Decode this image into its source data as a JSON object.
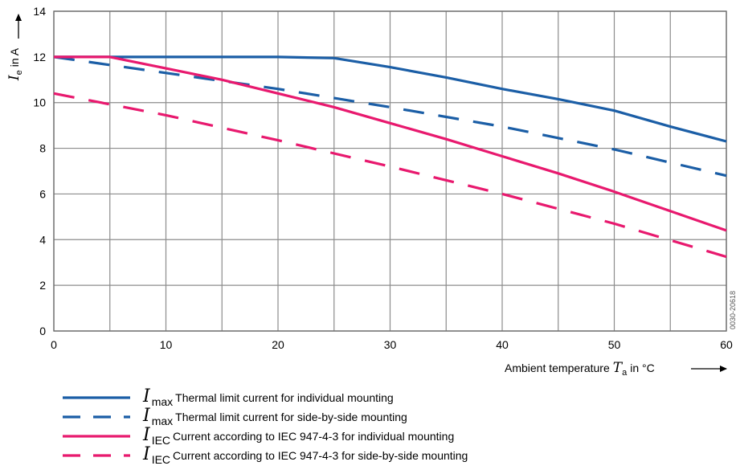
{
  "chart_data": {
    "type": "line",
    "title": "",
    "xlabel": "Ambient temperature",
    "xlabel_symbol": "T",
    "xlabel_subscript": "a",
    "xlabel_unit": "in °C",
    "ylabel_symbol": "I",
    "ylabel_subscript": "e",
    "ylabel_unit": "in A",
    "xlim": [
      0,
      60
    ],
    "ylim": [
      0,
      14
    ],
    "x_ticks": [
      0,
      10,
      20,
      30,
      40,
      50,
      60
    ],
    "y_ticks": [
      0,
      2,
      4,
      6,
      8,
      10,
      12,
      14
    ],
    "x_gridlines": [
      0,
      5,
      10,
      15,
      20,
      25,
      30,
      35,
      40,
      45,
      50,
      55,
      60
    ],
    "y_gridlines": [
      0,
      2,
      4,
      6,
      8,
      10,
      12,
      14
    ],
    "grid": true,
    "legend_position": "bottom",
    "side_note": "0030-20618",
    "series": [
      {
        "symbol": "I",
        "subscript": "max",
        "label": "Thermal limit current for individual mounting",
        "color": "#1b5ea6",
        "dash": "solid",
        "x": [
          0,
          5,
          10,
          15,
          20,
          25,
          30,
          35,
          40,
          45,
          50,
          55,
          60
        ],
        "y": [
          12.0,
          12.0,
          12.0,
          12.0,
          12.0,
          11.95,
          11.55,
          11.1,
          10.6,
          10.15,
          9.65,
          8.95,
          8.3
        ]
      },
      {
        "symbol": "I",
        "subscript": "max",
        "label": "Thermal limit current for side-by-side mounting",
        "color": "#1b5ea6",
        "dash": "dashed",
        "x": [
          0,
          10,
          20,
          30,
          40,
          50,
          60
        ],
        "y": [
          12.0,
          11.3,
          10.6,
          9.8,
          8.95,
          7.95,
          6.8
        ]
      },
      {
        "symbol": "I",
        "subscript": "IEC",
        "label": "Current according to IEC 947-4-3 for individual mounting",
        "color": "#e8196e",
        "dash": "solid",
        "x": [
          0,
          5,
          10,
          15,
          20,
          25,
          30,
          35,
          40,
          45,
          50,
          55,
          60
        ],
        "y": [
          12.0,
          12.0,
          11.5,
          11.0,
          10.4,
          9.8,
          9.1,
          8.4,
          7.65,
          6.9,
          6.1,
          5.25,
          4.4
        ]
      },
      {
        "symbol": "I",
        "subscript": "IEC",
        "label": "Current according to IEC 947-4-3 for side-by-side mounting",
        "color": "#e8196e",
        "dash": "dashed",
        "x": [
          0,
          10,
          20,
          30,
          40,
          50,
          60
        ],
        "y": [
          10.4,
          9.45,
          8.35,
          7.2,
          6.0,
          4.7,
          3.25
        ]
      }
    ]
  }
}
